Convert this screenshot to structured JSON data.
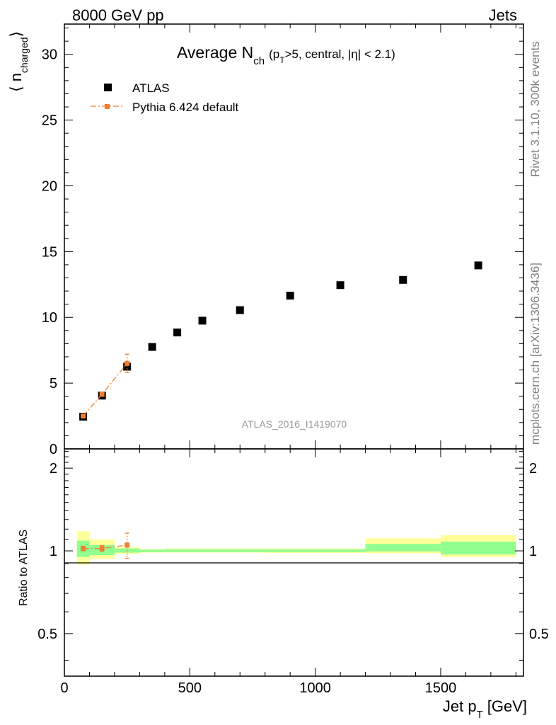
{
  "header": {
    "left": "8000 GeV pp",
    "right": "Jets"
  },
  "side_labels": {
    "rivet": "Rivet 3.1.10,  300k events",
    "mcplots": "mcplots.cern.ch [arXiv:1306.3436]"
  },
  "chart_data": [
    {
      "type": "scatter",
      "title": {
        "main": "Average N",
        "main_sub": "ch",
        "cond_open": "(p",
        "cond_sub": "T",
        "cond_rest": ">5, central, |η| < 2.1)"
      },
      "ylabel": {
        "prefix": "⟨ n",
        "sub": "charged",
        "suffix": "⟩"
      },
      "analysis_label": "ATLAS_2016_I1419070",
      "xlim": [
        0,
        1830
      ],
      "ylim": [
        0,
        32.3
      ],
      "yticks": [
        0,
        5,
        10,
        15,
        20,
        25,
        30
      ],
      "legend": {
        "placement": "top-left",
        "entries": [
          "ATLAS",
          "Pythia 6.424 default"
        ]
      },
      "series": [
        {
          "name": "ATLAS",
          "color": "#000000",
          "marker": "square",
          "x": [
            75,
            150,
            250,
            350,
            450,
            550,
            700,
            900,
            1100,
            1350,
            1650
          ],
          "y": [
            2.45,
            4.05,
            6.25,
            7.75,
            8.85,
            9.75,
            10.55,
            11.65,
            12.45,
            12.85,
            13.95
          ]
        },
        {
          "name": "Pythia 6.424 default",
          "color": "#f07f32",
          "marker": "square",
          "line": "dashdot",
          "x": [
            75,
            150,
            250
          ],
          "y": [
            2.5,
            4.15,
            6.5
          ],
          "yerr": [
            0.1,
            0.15,
            0.7
          ]
        }
      ]
    },
    {
      "type": "scatter",
      "ylabel": "Ratio to ATLAS",
      "xlabel": {
        "main": "Jet p",
        "sub": "T",
        "unit": "[GeV]"
      },
      "xlim": [
        0,
        1830
      ],
      "xticks": [
        0,
        500,
        1000,
        1500
      ],
      "ylim": [
        0.35,
        2.35
      ],
      "yticks": [
        0.5,
        1,
        2
      ],
      "bands": {
        "inner_color": "#90ff90",
        "outer_color": "#ffff99",
        "bins": [
          {
            "x0": 50,
            "x1": 100,
            "inner": [
              0.95,
              1.09
            ],
            "outer": [
              0.89,
              1.18
            ]
          },
          {
            "x0": 100,
            "x1": 200,
            "inner": [
              0.965,
              1.05
            ],
            "outer": [
              0.935,
              1.1
            ]
          },
          {
            "x0": 200,
            "x1": 300,
            "inner": [
              0.985,
              1.02
            ],
            "outer": [
              0.975,
              1.03
            ]
          },
          {
            "x0": 300,
            "x1": 400,
            "inner": [
              0.99,
              1.01
            ],
            "outer": [
              0.985,
              1.015
            ]
          },
          {
            "x0": 400,
            "x1": 800,
            "inner": [
              0.99,
              1.012
            ],
            "outer": [
              0.985,
              1.02
            ]
          },
          {
            "x0": 800,
            "x1": 1200,
            "inner": [
              0.99,
              1.012
            ],
            "outer": [
              0.983,
              1.02
            ]
          },
          {
            "x0": 1200,
            "x1": 1500,
            "inner": [
              0.995,
              1.06
            ],
            "outer": [
              0.98,
              1.11
            ]
          },
          {
            "x0": 1500,
            "x1": 1800,
            "inner": [
              0.97,
              1.08
            ],
            "outer": [
              0.95,
              1.14
            ]
          }
        ]
      },
      "series": [
        {
          "name": "Pythia 6.424 default",
          "color": "#f07f32",
          "marker": "square",
          "line": "dashdot",
          "x": [
            75,
            150,
            250
          ],
          "y": [
            1.02,
            1.02,
            1.05
          ],
          "yerr": [
            0.02,
            0.025,
            0.11
          ]
        }
      ]
    }
  ]
}
